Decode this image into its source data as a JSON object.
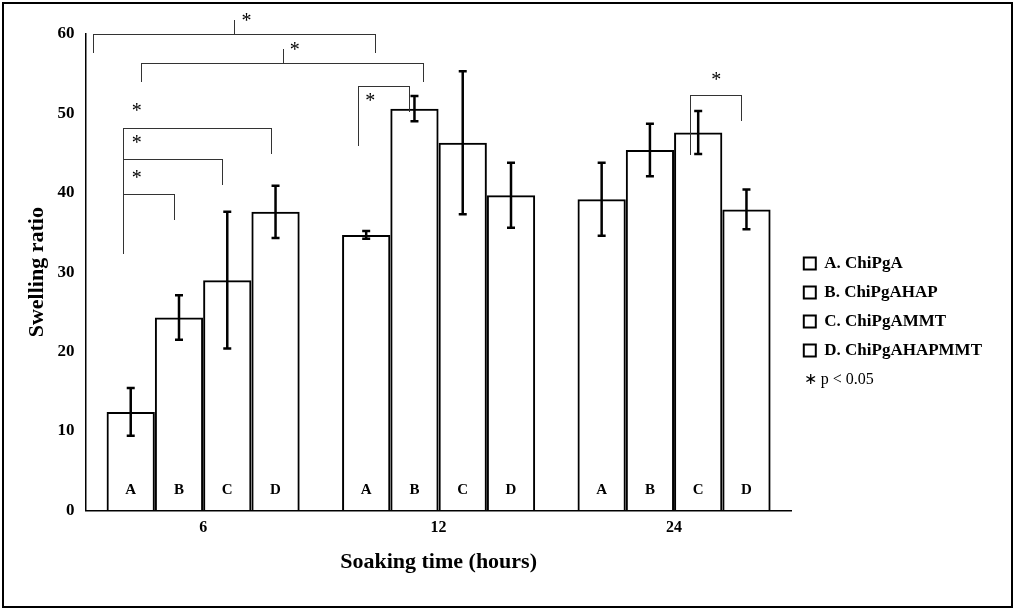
{
  "chart_data": {
    "type": "bar",
    "xlabel": "Soaking time (hours)",
    "ylabel": "Swelling ratio",
    "categories": [
      "6",
      "12",
      "24"
    ],
    "series": [
      {
        "name": "A. ChiPgA",
        "color": "#000000",
        "values": [
          12.4,
          34.7,
          39.2
        ],
        "errors": [
          3,
          0.5,
          4.6
        ],
        "value_labels": [
          "A",
          "A",
          "A"
        ]
      },
      {
        "name": "B. ChiPgAHAP",
        "color": "#000000",
        "values": [
          24.3,
          50.6,
          45.4
        ],
        "errors": [
          2.8,
          1.6,
          3.3
        ],
        "value_labels": [
          "B",
          "B",
          "B"
        ]
      },
      {
        "name": "C. ChiPgAMMT",
        "color": "#000000",
        "values": [
          29.0,
          46.3,
          47.6
        ],
        "errors": [
          8.6,
          9,
          2.7
        ],
        "value_labels": [
          "C",
          "C",
          "C"
        ]
      },
      {
        "name": "D. ChiPgAHAPMMT",
        "color": "#000000",
        "values": [
          37.6,
          39.7,
          37.9
        ],
        "errors": [
          3.3,
          4.1,
          2.5
        ],
        "value_labels": [
          "D",
          "D",
          "D"
        ]
      }
    ],
    "ylim": [
      0,
      60
    ],
    "yticks": [
      0,
      10,
      20,
      30,
      40,
      50,
      60
    ],
    "grid": false,
    "legend": "right",
    "annotations": [
      "*",
      "*",
      "*",
      "*",
      "*",
      "*",
      "*",
      "∗ p < 0.05"
    ]
  }
}
